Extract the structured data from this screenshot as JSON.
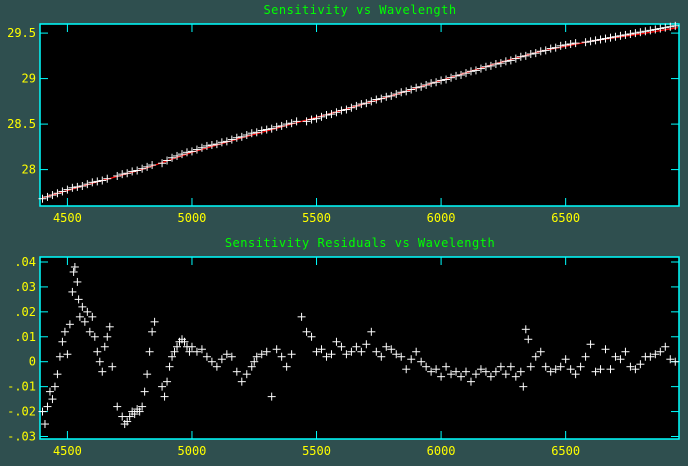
{
  "chart_data": [
    {
      "type": "scatter",
      "title": "Sensitivity vs Wavelength",
      "xlabel": "",
      "ylabel": "",
      "xlim": [
        4390,
        6955
      ],
      "ylim": [
        27.6,
        29.6
      ],
      "xticks": [
        4500,
        5000,
        5500,
        6000,
        6500
      ],
      "xtick_labels": [
        "4500",
        "5000",
        "5500",
        "6000",
        "6500"
      ],
      "yticks": [
        28.0,
        28.5,
        29.0,
        29.5
      ],
      "ytick_labels": [
        "28",
        "28.5",
        "29",
        "29.5"
      ],
      "grid": false,
      "colors": {
        "points": "#ffffff",
        "fit": "#ff0000",
        "frame": "#00ffff",
        "ticks": "#ffff00",
        "title": "#00ff00",
        "background": "#000000"
      },
      "series": [
        {
          "marker": "+",
          "x": [
            4400,
            4420,
            4440,
            4460,
            4480,
            4500,
            4520,
            4540,
            4560,
            4580,
            4600,
            4620,
            4640,
            4660,
            4700,
            4720,
            4740,
            4760,
            4780,
            4800,
            4820,
            4840,
            4880,
            4900,
            4920,
            4940,
            4960,
            4980,
            5000,
            5020,
            5040,
            5060,
            5080,
            5100,
            5120,
            5140,
            5160,
            5180,
            5200,
            5220,
            5240,
            5260,
            5280,
            5300,
            5320,
            5340,
            5360,
            5380,
            5400,
            5420,
            5460,
            5480,
            5500,
            5520,
            5540,
            5560,
            5580,
            5600,
            5620,
            5640,
            5660,
            5680,
            5700,
            5720,
            5740,
            5760,
            5780,
            5800,
            5820,
            5840,
            5860,
            5880,
            5900,
            5920,
            5940,
            5960,
            5980,
            6000,
            6020,
            6040,
            6060,
            6080,
            6100,
            6120,
            6140,
            6160,
            6180,
            6200,
            6220,
            6240,
            6260,
            6280,
            6300,
            6320,
            6340,
            6360,
            6380,
            6400,
            6420,
            6440,
            6460,
            6480,
            6500,
            6520,
            6540,
            6580,
            6600,
            6620,
            6640,
            6660,
            6680,
            6700,
            6720,
            6740,
            6760,
            6780,
            6800,
            6820,
            6840,
            6860,
            6880,
            6900,
            6920,
            6940
          ],
          "y": [
            27.68,
            27.7,
            27.72,
            27.74,
            27.76,
            27.78,
            27.8,
            27.81,
            27.82,
            27.84,
            27.86,
            27.87,
            27.88,
            27.9,
            27.93,
            27.95,
            27.96,
            27.98,
            27.99,
            28.01,
            28.03,
            28.05,
            28.07,
            28.1,
            28.13,
            28.15,
            28.17,
            28.19,
            28.2,
            28.22,
            28.24,
            28.26,
            28.27,
            28.28,
            28.3,
            28.31,
            28.33,
            28.35,
            28.36,
            28.38,
            28.4,
            28.41,
            28.43,
            28.44,
            28.45,
            28.47,
            28.48,
            28.5,
            28.51,
            28.53,
            28.53,
            28.55,
            28.56,
            28.58,
            28.6,
            28.61,
            28.63,
            28.65,
            28.66,
            28.68,
            28.7,
            28.72,
            28.73,
            28.75,
            28.77,
            28.78,
            28.8,
            28.81,
            28.83,
            28.85,
            28.86,
            28.88,
            28.9,
            28.91,
            28.93,
            28.95,
            28.96,
            28.98,
            28.99,
            29.01,
            29.03,
            29.04,
            29.06,
            29.08,
            29.09,
            29.11,
            29.13,
            29.14,
            29.16,
            29.17,
            29.19,
            29.2,
            29.22,
            29.24,
            29.25,
            29.27,
            29.28,
            29.3,
            29.31,
            29.33,
            29.34,
            29.36,
            29.37,
            29.38,
            29.39,
            29.4,
            29.41,
            29.42,
            29.43,
            29.44,
            29.45,
            29.46,
            29.47,
            29.48,
            29.49,
            29.5,
            29.51,
            29.52,
            29.53,
            29.54,
            29.55,
            29.56,
            29.57,
            29.58
          ]
        }
      ],
      "fit": {
        "x": [
          4400,
          4600,
          4800,
          5000,
          5200,
          5400,
          5600,
          5800,
          6000,
          6200,
          6400,
          6600,
          6800,
          6950
        ],
        "y": [
          27.69,
          27.85,
          28.0,
          28.19,
          28.35,
          28.5,
          28.65,
          28.81,
          28.98,
          29.15,
          29.3,
          29.41,
          29.49,
          29.56
        ]
      }
    },
    {
      "type": "scatter",
      "title": "Sensitivity Residuals vs Wavelength",
      "xlabel": "",
      "ylabel": "",
      "xlim": [
        4390,
        6955
      ],
      "ylim": [
        -0.031,
        0.042
      ],
      "xticks": [
        4500,
        5000,
        5500,
        6000,
        6500
      ],
      "xtick_labels": [
        "4500",
        "5000",
        "5500",
        "6000",
        "6500"
      ],
      "yticks": [
        0.04,
        0.03,
        0.02,
        0.01,
        0.0,
        -0.01,
        -0.02,
        -0.03
      ],
      "ytick_labels": [
        ".04",
        ".03",
        ".02",
        ".01",
        "0",
        "-.01",
        "-.02",
        "-.03"
      ],
      "grid": false,
      "colors": {
        "points": "#ffffff",
        "frame": "#00ffff",
        "ticks": "#ffff00",
        "title": "#00ff00",
        "background": "#000000"
      },
      "series": [
        {
          "marker": "+",
          "x": [
            4400,
            4410,
            4420,
            4430,
            4440,
            4450,
            4460,
            4470,
            4480,
            4490,
            4500,
            4510,
            4520,
            4525,
            4530,
            4540,
            4545,
            4550,
            4560,
            4570,
            4580,
            4590,
            4600,
            4610,
            4620,
            4630,
            4640,
            4650,
            4660,
            4670,
            4680,
            4700,
            4720,
            4730,
            4740,
            4750,
            4760,
            4770,
            4780,
            4790,
            4800,
            4810,
            4820,
            4830,
            4840,
            4850,
            4880,
            4890,
            4900,
            4910,
            4920,
            4930,
            4940,
            4950,
            4960,
            4970,
            4980,
            4990,
            5000,
            5020,
            5040,
            5060,
            5080,
            5100,
            5120,
            5140,
            5160,
            5180,
            5200,
            5220,
            5240,
            5250,
            5260,
            5280,
            5300,
            5320,
            5340,
            5360,
            5380,
            5400,
            5440,
            5460,
            5480,
            5500,
            5520,
            5540,
            5560,
            5580,
            5600,
            5620,
            5640,
            5660,
            5680,
            5700,
            5720,
            5740,
            5760,
            5780,
            5800,
            5820,
            5840,
            5860,
            5880,
            5900,
            5920,
            5940,
            5960,
            5980,
            6000,
            6020,
            6040,
            6060,
            6080,
            6100,
            6120,
            6140,
            6160,
            6180,
            6200,
            6220,
            6240,
            6260,
            6280,
            6300,
            6320,
            6330,
            6340,
            6350,
            6360,
            6380,
            6400,
            6420,
            6440,
            6460,
            6480,
            6500,
            6520,
            6540,
            6560,
            6580,
            6600,
            6620,
            6640,
            6660,
            6680,
            6700,
            6720,
            6740,
            6760,
            6780,
            6800,
            6820,
            6840,
            6860,
            6880,
            6900,
            6920,
            6940
          ],
          "y": [
            -0.02,
            -0.025,
            -0.018,
            -0.012,
            -0.015,
            -0.01,
            -0.005,
            0.002,
            0.008,
            0.012,
            0.003,
            0.015,
            0.028,
            0.036,
            0.038,
            0.032,
            0.025,
            0.018,
            0.022,
            0.016,
            0.02,
            0.012,
            0.018,
            0.01,
            0.004,
            0.0,
            -0.004,
            0.006,
            0.01,
            0.014,
            -0.002,
            -0.018,
            -0.022,
            -0.025,
            -0.024,
            -0.022,
            -0.02,
            -0.021,
            -0.019,
            -0.02,
            -0.018,
            -0.012,
            -0.005,
            0.004,
            0.012,
            0.016,
            -0.01,
            -0.014,
            -0.008,
            -0.002,
            0.002,
            0.004,
            0.006,
            0.008,
            0.009,
            0.008,
            0.006,
            0.004,
            0.006,
            0.004,
            0.005,
            0.002,
            0.0,
            -0.002,
            0.001,
            0.003,
            0.002,
            -0.004,
            -0.008,
            -0.005,
            -0.002,
            0.0,
            0.002,
            0.003,
            0.004,
            -0.014,
            0.005,
            0.002,
            -0.002,
            0.003,
            0.018,
            0.012,
            0.01,
            0.004,
            0.005,
            0.002,
            0.003,
            0.008,
            0.006,
            0.003,
            0.004,
            0.006,
            0.004,
            0.007,
            0.012,
            0.004,
            0.002,
            0.006,
            0.005,
            0.003,
            0.002,
            -0.003,
            0.001,
            0.004,
            0.0,
            -0.002,
            -0.004,
            -0.003,
            -0.006,
            -0.002,
            -0.005,
            -0.004,
            -0.006,
            -0.004,
            -0.008,
            -0.005,
            -0.003,
            -0.004,
            -0.006,
            -0.004,
            -0.002,
            -0.005,
            -0.002,
            -0.006,
            -0.004,
            -0.01,
            0.013,
            0.009,
            -0.002,
            0.002,
            0.004,
            -0.002,
            -0.004,
            -0.003,
            -0.002,
            0.001,
            -0.003,
            -0.005,
            -0.002,
            0.002,
            0.007,
            -0.004,
            -0.003,
            0.005,
            -0.003,
            0.002,
            0.001,
            0.004,
            -0.002,
            -0.003,
            -0.001,
            0.002,
            0.002,
            0.003,
            0.004,
            0.006,
            0.001,
            0.0
          ]
        }
      ]
    }
  ]
}
